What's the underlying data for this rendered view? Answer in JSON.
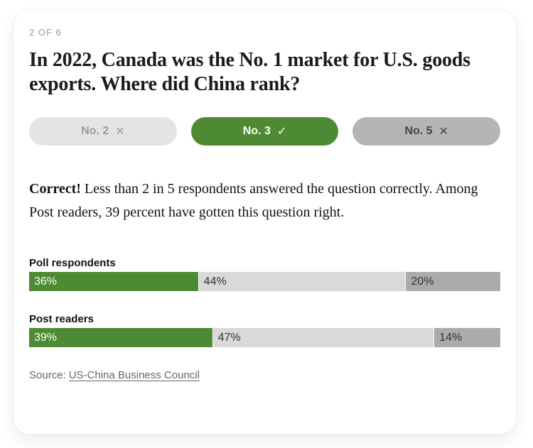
{
  "card": {
    "progress": "2 OF 6",
    "question": "In 2022, Canada was the No. 1 market for U.S. goods exports. Where did China rank?",
    "options": [
      {
        "label": "No. 2",
        "mark": "✕",
        "state": "incorrect-dim"
      },
      {
        "label": "No. 3",
        "mark": "✓",
        "state": "correct"
      },
      {
        "label": "No. 5",
        "mark": "✕",
        "state": "incorrect-dark"
      }
    ],
    "result": {
      "lead": "Correct!",
      "text": " Less than 2 in 5 respondents answered the question correctly. Among Post readers, 39 percent have gotten this question right."
    },
    "source": {
      "prefix": "Source:",
      "link": "US-China Business Council"
    }
  },
  "chart_data": {
    "type": "bar",
    "variant": "horizontal-stacked",
    "categories": [
      "Poll respondents",
      "Post readers"
    ],
    "series": [
      {
        "name": "green-segment",
        "color": "#4e8a33",
        "values": [
          36,
          39
        ]
      },
      {
        "name": "light-gray-segment",
        "color": "#d9d9d9",
        "values": [
          44,
          47
        ]
      },
      {
        "name": "dark-gray-segment",
        "color": "#ababab",
        "values": [
          20,
          14
        ]
      }
    ],
    "labels": [
      [
        "36%",
        "44%",
        "20%"
      ],
      [
        "39%",
        "47%",
        "14%"
      ]
    ],
    "xlim": [
      0,
      100
    ],
    "legend": false,
    "grid": false
  },
  "colors": {
    "green": "#4e8a33",
    "bar_light": "#d9d9d9",
    "bar_dark": "#ababab",
    "pill_light": "#e4e4e4",
    "pill_dark": "#b5b5b5"
  }
}
